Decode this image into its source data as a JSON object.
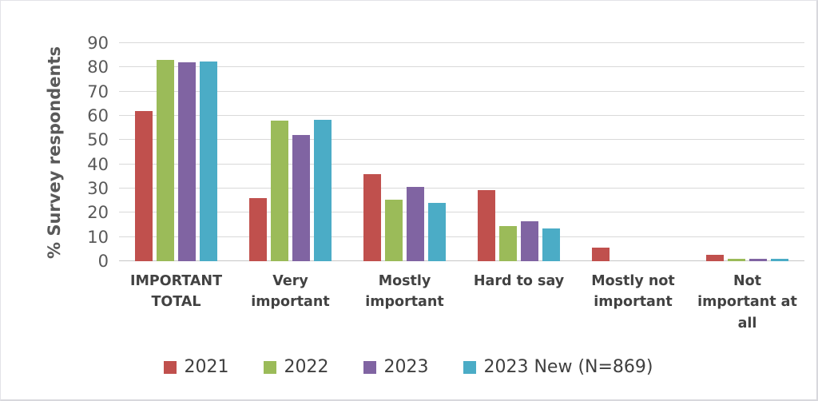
{
  "chart_data": {
    "type": "bar",
    "title": "",
    "xlabel": "",
    "ylabel": "% Survey respondents",
    "ylim": [
      0,
      90
    ],
    "yticks": [
      0,
      10,
      20,
      30,
      40,
      50,
      60,
      70,
      80,
      90
    ],
    "grid": "horizontal",
    "legend_position": "bottom",
    "categories": [
      "IMPORTANT TOTAL",
      "Very important",
      "Mostly important",
      "Hard to say",
      "Mostly not important",
      "Not important at all"
    ],
    "series": [
      {
        "name": "2021",
        "color": "#C0504D",
        "values": [
          62,
          26,
          36,
          29.5,
          5.5,
          2.5
        ]
      },
      {
        "name": "2022",
        "color": "#9BBB59",
        "values": [
          83,
          58,
          25.5,
          14.5,
          0,
          1
        ]
      },
      {
        "name": "2023",
        "color": "#8064A2",
        "values": [
          82,
          52,
          30.5,
          16.5,
          0,
          1
        ]
      },
      {
        "name": "2023 New (N=869)",
        "color": "#4BACC6",
        "values": [
          82.5,
          58.5,
          24,
          13.5,
          0,
          1
        ]
      }
    ],
    "colors": {
      "gridline": "#D9D9D9",
      "axis_line": "#C7C7C7",
      "tick_text": "#595959",
      "label_text": "#424242"
    }
  }
}
